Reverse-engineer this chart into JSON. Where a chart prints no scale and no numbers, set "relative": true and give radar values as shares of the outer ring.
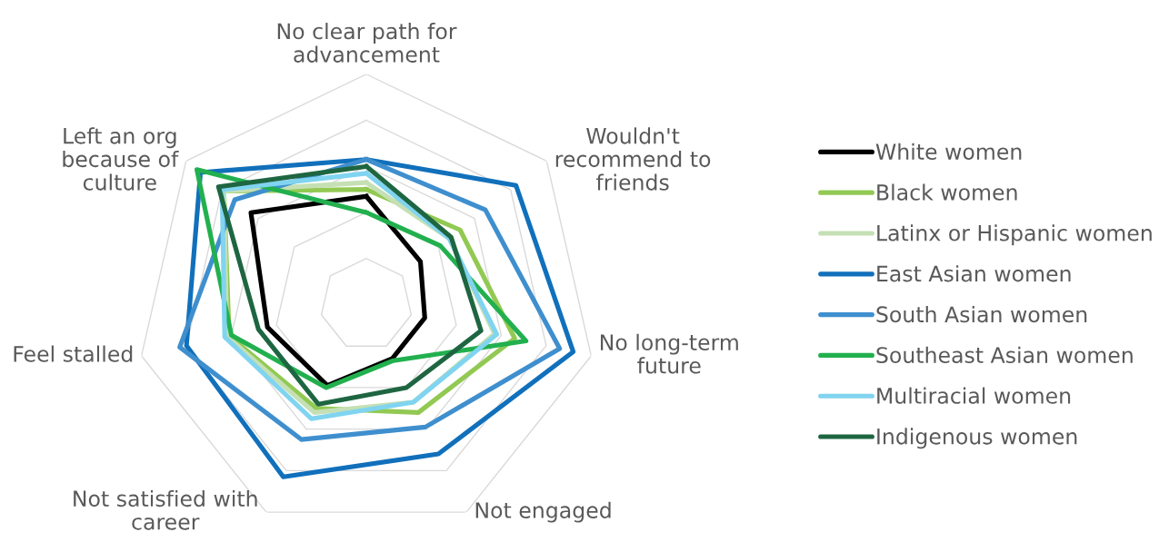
{
  "chart_data": {
    "type": "radar",
    "relative": true,
    "grid": "y",
    "legend": "right",
    "line_style": "solid",
    "categories": [
      "No clear path for\nadvancement",
      "Wouldn't\nrecommend to\nfriends",
      "No long-term\nfuture",
      "Not engaged",
      "Not satisfied with\ncareer",
      "Feel stalled",
      "Left an org\nbecause of\nculture"
    ],
    "series": [
      {
        "name": "White women",
        "color": "#000000",
        "values": [
          0.47,
          0.3,
          0.26,
          0.26,
          0.39,
          0.44,
          0.64
        ]
      },
      {
        "name": "Black women",
        "color": "#92c953",
        "values": [
          0.5,
          0.52,
          0.66,
          0.52,
          0.5,
          0.61,
          0.79
        ]
      },
      {
        "name": "Latinx or Hispanic women",
        "color": "#c5e0b4",
        "values": [
          0.53,
          0.46,
          0.57,
          0.47,
          0.52,
          0.62,
          0.79
        ]
      },
      {
        "name": "East Asian women",
        "color": "#1170bb",
        "values": [
          0.63,
          0.83,
          0.92,
          0.72,
          0.83,
          0.8,
          0.92
        ]
      },
      {
        "name": "South Asian women",
        "color": "#3f8fce",
        "values": [
          0.63,
          0.66,
          0.86,
          0.59,
          0.65,
          0.83,
          0.73
        ]
      },
      {
        "name": "Southeast Asian women",
        "color": "#22b04f",
        "values": [
          0.4,
          0.41,
          0.71,
          0.27,
          0.4,
          0.6,
          0.94
        ]
      },
      {
        "name": "Multiracial women",
        "color": "#80d4f0",
        "values": [
          0.57,
          0.46,
          0.58,
          0.47,
          0.55,
          0.63,
          0.8
        ]
      },
      {
        "name": "Indigenous women",
        "color": "#1e6641",
        "values": [
          0.6,
          0.47,
          0.51,
          0.4,
          0.48,
          0.48,
          0.82
        ]
      }
    ]
  }
}
